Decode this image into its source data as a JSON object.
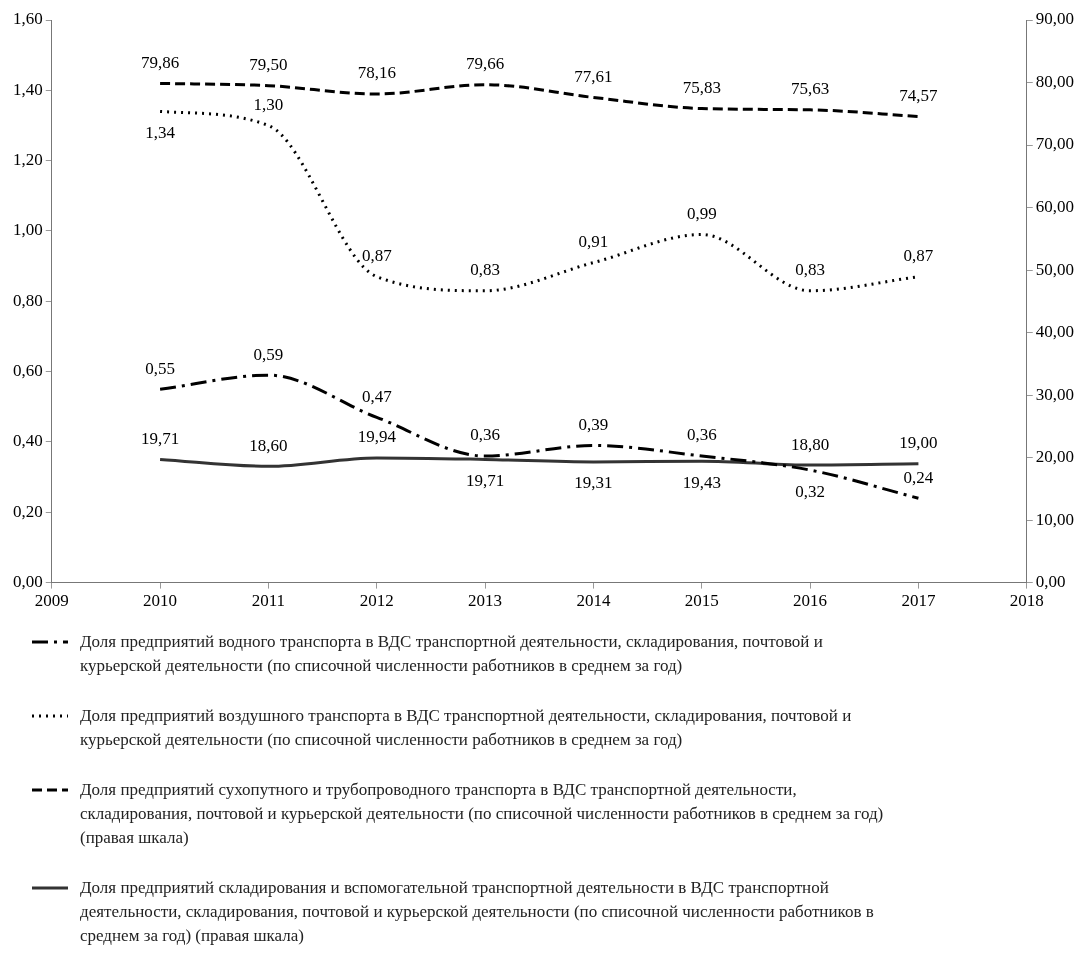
{
  "chart_data": {
    "type": "line",
    "x": [
      2010,
      2011,
      2012,
      2013,
      2014,
      2015,
      2016,
      2017
    ],
    "xlim": [
      2009,
      2018
    ],
    "xticks": [
      2009,
      2010,
      2011,
      2012,
      2013,
      2014,
      2015,
      2016,
      2017,
      2018
    ],
    "ylim": [
      0,
      1.6
    ],
    "yticks": [
      {
        "value": 0,
        "label": "0,00"
      },
      {
        "value": 0.2,
        "label": "0,20"
      },
      {
        "value": 0.4,
        "label": "0,40"
      },
      {
        "value": 0.6,
        "label": "0,60"
      },
      {
        "value": 0.8,
        "label": "0,80"
      },
      {
        "value": 1.0,
        "label": "1,00"
      },
      {
        "value": 1.2,
        "label": "1,20"
      },
      {
        "value": 1.4,
        "label": "1,40"
      },
      {
        "value": 1.6,
        "label": "1,60"
      }
    ],
    "y2lim": [
      0,
      90
    ],
    "y2ticks": [
      {
        "value": 0,
        "label": "0,00"
      },
      {
        "value": 10,
        "label": "10,00"
      },
      {
        "value": 20,
        "label": "20,00"
      },
      {
        "value": 30,
        "label": "30,00"
      },
      {
        "value": 40,
        "label": "40,00"
      },
      {
        "value": 50,
        "label": "50,00"
      },
      {
        "value": 60,
        "label": "60,00"
      },
      {
        "value": 70,
        "label": "70,00"
      },
      {
        "value": 80,
        "label": "80,00"
      },
      {
        "value": 90,
        "label": "90,00"
      }
    ],
    "series": [
      {
        "name": "Доля предприятий водного транспорта в ВДС транспортной деятельности, складирования, почтовой и курьерской деятельности (по списочной численности работников в среднем за год)",
        "color": "#000000",
        "line_style": "dashdot",
        "values": [
          0.55,
          0.59,
          0.47,
          0.36,
          0.39,
          0.36,
          0.32,
          0.24
        ],
        "value_labels": [
          "0,55",
          "0,59",
          "0,47",
          "0,36",
          "0,39",
          "0,36",
          "0,32",
          "0,24"
        ]
      },
      {
        "name": "Доля предприятий воздушного транспорта в ВДС транспортной деятельности, складирования, почтовой и курьерской деятельности (по списочной численности работников в среднем за год)",
        "color": "#000000",
        "line_style": "dotted",
        "values": [
          1.34,
          1.3,
          0.87,
          0.83,
          0.91,
          0.99,
          0.83,
          0.87
        ],
        "value_labels": [
          "1,34",
          "1,30",
          "0,87",
          "0,83",
          "0,91",
          "0,99",
          "0,83",
          "0,87"
        ]
      },
      {
        "name": "Доля предприятий сухопутного и трубопроводного транспорта в ВДС транспортной деятельности, складирования, почтовой и курьерской деятельности (по списочной численности работников в среднем за год) (правая шкала)",
        "color": "#000000",
        "line_style": "dashed",
        "axis": "y2",
        "values": [
          79.86,
          79.5,
          78.16,
          79.66,
          77.61,
          75.83,
          75.63,
          74.57
        ],
        "value_labels": [
          "79,86",
          "79,50",
          "78,16",
          "79,66",
          "77,61",
          "75,83",
          "75,63",
          "74,57"
        ]
      },
      {
        "name": "Доля предприятий складирования и вспомогательной транспортной деятельности в ВДС транспортной деятельности, складирования, почтовой и курьерской деятельности (по списочной численности работников в среднем за год) (правая шкала)",
        "color": "#333333",
        "line_style": "solid",
        "axis": "y2",
        "values": [
          19.71,
          18.6,
          19.94,
          19.71,
          19.31,
          19.43,
          18.8,
          19.0
        ],
        "value_labels": [
          "19,71",
          "18,60",
          "19,94",
          "19,71",
          "19,31",
          "19,43",
          "18,80",
          "19,00"
        ]
      }
    ],
    "grid": false,
    "legend": "bottom",
    "marker": "none"
  }
}
